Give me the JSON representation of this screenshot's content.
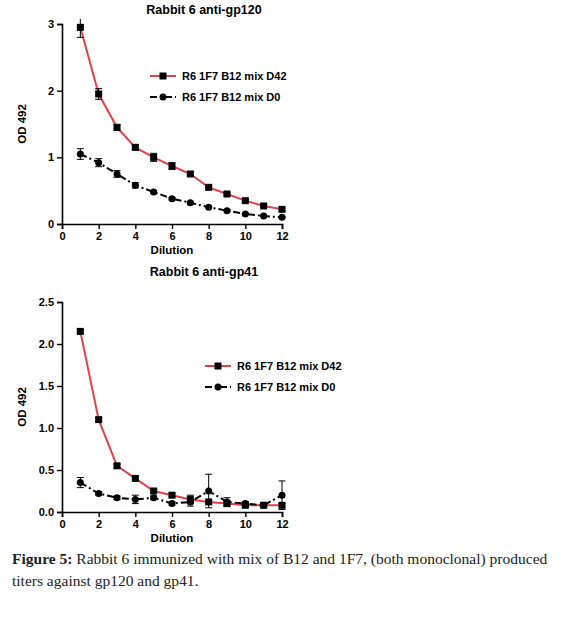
{
  "chart_data": [
    {
      "type": "line",
      "title": "Rabbit 6 anti-gp120",
      "x_label": "Dilution",
      "y_label": "OD 492",
      "x": [
        1,
        2,
        3,
        4,
        5,
        6,
        7,
        8,
        9,
        10,
        11,
        12
      ],
      "xlim": [
        0,
        12
      ],
      "xticks": [
        0,
        2,
        4,
        6,
        8,
        10,
        12
      ],
      "ylim": [
        0,
        3
      ],
      "yticks": [
        0,
        1,
        2,
        3
      ],
      "grid": false,
      "legend": "top-right",
      "series": [
        {
          "name": "R6 1F7 B12 mix D42",
          "color": "#e8404a",
          "marker": "square",
          "line_style": "solid",
          "values": [
            2.95,
            1.95,
            1.45,
            1.15,
            1.0,
            0.87,
            0.75,
            0.55,
            0.45,
            0.35,
            0.27,
            0.22
          ],
          "error": [
            0.15,
            0.08,
            0.04,
            0.04,
            0.06,
            0.05,
            0.03,
            0.02,
            0.02,
            0.02,
            0.02,
            0.02
          ]
        },
        {
          "name": "R6 1F7 B12 mix D0",
          "color": "#000000",
          "marker": "circle",
          "line_style": "dashdot",
          "values": [
            1.05,
            0.92,
            0.75,
            0.58,
            0.48,
            0.38,
            0.32,
            0.25,
            0.2,
            0.15,
            0.12,
            0.1
          ],
          "error": [
            0.08,
            0.06,
            0.05,
            0.04,
            0.02,
            0.02,
            0.02,
            0.01,
            0.01,
            0.01,
            0.01,
            0.01
          ]
        }
      ]
    },
    {
      "type": "line",
      "title": "Rabbit 6 anti-gp41",
      "x_label": "Dilution",
      "y_label": "OD 492",
      "x": [
        1,
        2,
        3,
        4,
        5,
        6,
        7,
        8,
        9,
        10,
        11,
        12
      ],
      "xlim": [
        0,
        12
      ],
      "xticks": [
        0,
        2,
        4,
        6,
        8,
        10,
        12
      ],
      "ylim": [
        0,
        2.5
      ],
      "yticks": [
        {
          "value": 0,
          "label": "0.0"
        },
        0.5,
        {
          "value": 1,
          "label": "1.0"
        },
        1.5,
        {
          "value": 2,
          "label": "2.0"
        },
        2.5
      ],
      "grid": false,
      "legend": "top-right",
      "series": [
        {
          "name": "R6 1F7 B12 mix D42",
          "color": "#e8404a",
          "marker": "square",
          "line_style": "solid",
          "values": [
            2.15,
            1.1,
            0.55,
            0.4,
            0.25,
            0.2,
            0.15,
            0.12,
            0.1,
            0.08,
            0.08,
            0.08
          ],
          "error": [
            0.02,
            0.02,
            0.02,
            0.02,
            0.02,
            0.02,
            0.05,
            0.02,
            0.02,
            0.02,
            0.02,
            0.02
          ]
        },
        {
          "name": "R6 1F7 B12 mix D0",
          "color": "#000000",
          "marker": "circle",
          "line_style": "dashdot",
          "values": [
            0.35,
            0.22,
            0.17,
            0.15,
            0.17,
            0.1,
            0.12,
            0.25,
            0.12,
            0.1,
            0.08,
            0.2
          ],
          "error": [
            0.06,
            0.02,
            0.02,
            0.05,
            0.02,
            0.02,
            0.05,
            0.2,
            0.05,
            0.02,
            0.02,
            0.17
          ]
        }
      ]
    }
  ],
  "caption": {
    "label": "Figure 5:",
    "text": "Rabbit 6 immunized with mix of B12 and 1F7, (both monoclonal) produced titers against gp120 and gp41."
  }
}
